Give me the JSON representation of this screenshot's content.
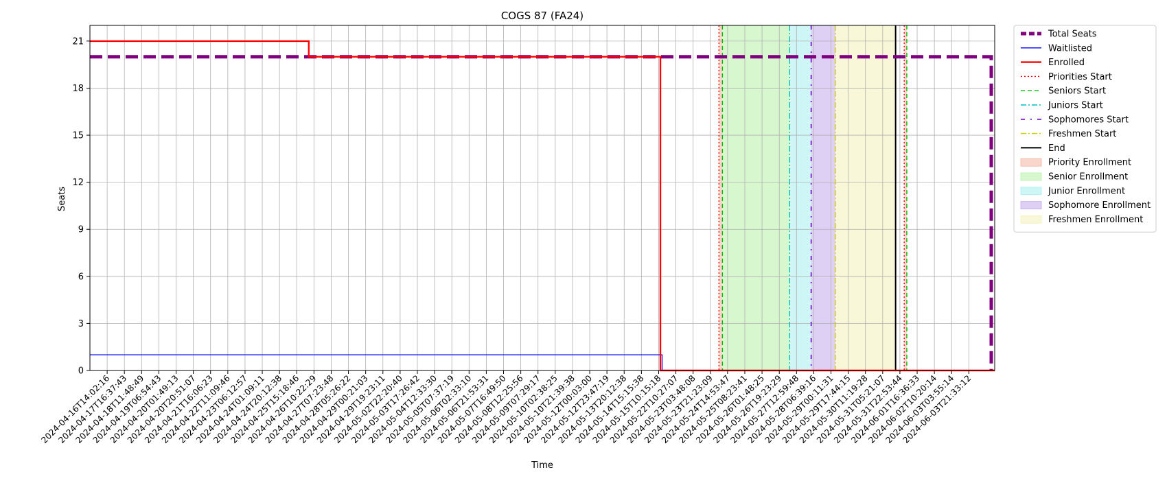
{
  "chart_data": {
    "type": "line",
    "title": "COGS 87 (FA24)",
    "xlabel": "Time",
    "ylabel": "Seats",
    "ylim": [
      0,
      22
    ],
    "yticks": [
      0,
      3,
      6,
      9,
      12,
      15,
      18,
      21
    ],
    "grid": true,
    "legend_position": "outside-right",
    "x_categories": [
      "2024-04-16T14:02:16",
      "2024-04-17T16:37:43",
      "2024-04-18T11:48:49",
      "2024-04-19T06:54:43",
      "2024-04-20T01:49:13",
      "2024-04-20T20:51:07",
      "2024-04-21T16:06:23",
      "2024-04-22T11:09:46",
      "2024-04-23T06:12:57",
      "2024-04-24T01:09:11",
      "2024-04-24T20:12:38",
      "2024-04-25T15:18:46",
      "2024-04-26T10:22:29",
      "2024-04-27T07:23:48",
      "2024-04-28T05:26:22",
      "2024-04-29T00:21:03",
      "2024-04-29T19:23:11",
      "2024-05-02T22:20:40",
      "2024-05-03T17:26:42",
      "2024-05-04T12:33:30",
      "2024-05-05T07:37:19",
      "2024-05-06T02:33:10",
      "2024-05-06T21:53:31",
      "2024-05-07T16:49:50",
      "2024-05-08T12:25:56",
      "2024-05-09T07:29:17",
      "2024-05-10T02:38:25",
      "2024-05-10T21:39:38",
      "2024-05-12T00:03:00",
      "2024-05-12T23:47:19",
      "2024-05-13T20:12:38",
      "2024-05-14T15:15:38",
      "2024-05-15T10:15:18",
      "2024-05-22T10:27:07",
      "2024-05-23T03:48:08",
      "2024-05-23T21:23:09",
      "2024-05-24T14:53:47",
      "2024-05-25T08:23:41",
      "2024-05-26T01:48:25",
      "2024-05-26T19:23:29",
      "2024-05-27T12:59:48",
      "2024-05-28T06:39:16",
      "2024-05-29T00:11:31",
      "2024-05-29T17:44:15",
      "2024-05-30T11:19:28",
      "2024-05-31T05:21:07",
      "2024-05-31T22:53:44",
      "2024-06-01T16:36:33",
      "2024-06-02T10:20:14",
      "2024-06-03T03:55:14",
      "2024-06-03T21:33:12"
    ],
    "x_index_range": [
      -1,
      51.5
    ],
    "series": [
      {
        "name": "Total Seats",
        "color": "#800080",
        "style": "dashed-thick",
        "points": [
          [
            -1,
            20
          ],
          [
            51.3,
            20
          ],
          [
            51.3,
            0
          ]
        ]
      },
      {
        "name": "Waitlisted",
        "color": "#0000ff",
        "style": "solid-thin",
        "points": [
          [
            -1,
            1
          ],
          [
            32.2,
            1
          ],
          [
            32.2,
            0
          ],
          [
            51.5,
            0
          ]
        ]
      },
      {
        "name": "Enrolled",
        "color": "#ff0000",
        "style": "solid-thick",
        "points": [
          [
            -1,
            21
          ],
          [
            11.7,
            21
          ],
          [
            11.7,
            20
          ],
          [
            32.1,
            20
          ],
          [
            32.1,
            0
          ],
          [
            51.5,
            0
          ]
        ]
      }
    ],
    "vlines": [
      {
        "name": "Priorities Start",
        "x": 35.5,
        "color": "#ff0000",
        "style": "dotted"
      },
      {
        "name": "Seniors Start",
        "x": 35.7,
        "color": "#00bb00",
        "style": "dashed"
      },
      {
        "name": "Juniors Start",
        "x": 39.6,
        "color": "#00bfbf",
        "style": "dashdot"
      },
      {
        "name": "Sophomores Start",
        "x": 40.85,
        "color": "#6600cc",
        "style": "dash-dot-sparse"
      },
      {
        "name": "Freshmen Start",
        "x": 42.25,
        "color": "#cccc00",
        "style": "dashdot"
      },
      {
        "name": "End",
        "x": 45.75,
        "color": "#000000",
        "style": "solid"
      },
      {
        "name": "Priorities Start (2)",
        "x": 46.25,
        "color": "#ff0000",
        "style": "dotted"
      },
      {
        "name": "Seniors Start (2)",
        "x": 46.4,
        "color": "#00bb00",
        "style": "dashed"
      }
    ],
    "spans": [
      {
        "name": "Priority Enrollment",
        "x0": 35.5,
        "x1": 35.7,
        "color": "#f4b4a0"
      },
      {
        "name": "Senior Enrollment",
        "x0": 35.7,
        "x1": 39.6,
        "color": "#b7f0a8"
      },
      {
        "name": "Junior Enrollment",
        "x0": 39.6,
        "x1": 40.85,
        "color": "#a8eef0"
      },
      {
        "name": "Sophomore Enrollment",
        "x0": 40.85,
        "x1": 42.25,
        "color": "#c3a8ec"
      },
      {
        "name": "Freshmen Enrollment",
        "x0": 42.25,
        "x1": 45.75,
        "color": "#f2f2b8"
      },
      {
        "name": "Priority Enrollment (2)",
        "x0": 46.25,
        "x1": 46.4,
        "color": "#f4b4a0"
      }
    ],
    "legend": [
      {
        "label": "Total Seats",
        "kind": "line",
        "color": "#800080",
        "style": "dashed-thick"
      },
      {
        "label": "Waitlisted",
        "kind": "line",
        "color": "#0000ff",
        "style": "solid-thin"
      },
      {
        "label": "Enrolled",
        "kind": "line",
        "color": "#ff0000",
        "style": "solid-thick"
      },
      {
        "label": "Priorities Start",
        "kind": "line",
        "color": "#ff0000",
        "style": "dotted"
      },
      {
        "label": "Seniors Start",
        "kind": "line",
        "color": "#00bb00",
        "style": "dashed"
      },
      {
        "label": "Juniors Start",
        "kind": "line",
        "color": "#00bfbf",
        "style": "dashdot"
      },
      {
        "label": "Sophomores Start",
        "kind": "line",
        "color": "#6600cc",
        "style": "dash-dot-sparse"
      },
      {
        "label": "Freshmen Start",
        "kind": "line",
        "color": "#cccc00",
        "style": "dashdot"
      },
      {
        "label": "End",
        "kind": "line",
        "color": "#000000",
        "style": "solid"
      },
      {
        "label": "Priority Enrollment",
        "kind": "patch",
        "color": "#f4b4a0"
      },
      {
        "label": "Senior Enrollment",
        "kind": "patch",
        "color": "#b7f0a8"
      },
      {
        "label": "Junior Enrollment",
        "kind": "patch",
        "color": "#a8eef0"
      },
      {
        "label": "Sophomore Enrollment",
        "kind": "patch",
        "color": "#c3a8ec"
      },
      {
        "label": "Freshmen Enrollment",
        "kind": "patch",
        "color": "#f2f2b8"
      }
    ]
  }
}
